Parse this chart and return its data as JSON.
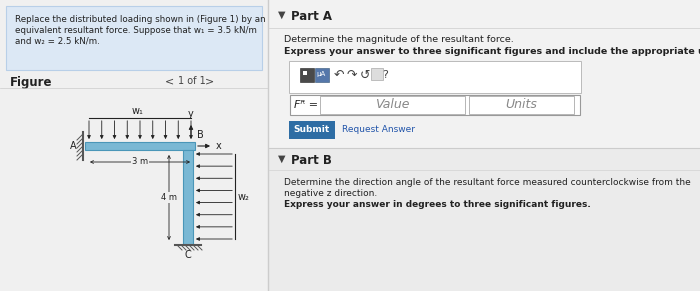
{
  "bg_left": "#f0f0f0",
  "bg_right": "#f2f2f2",
  "problem_box_color": "#dce8f5",
  "problem_box_border": "#b8cfe8",
  "problem_text_line1": "Replace the distributed loading shown in (Figure 1) by an",
  "problem_text_line2": "equivalent resultant force. Suppose that w₁ = 3.5 kN/m",
  "problem_text_line3": "and w₂ = 2.5 kN/m.",
  "figure_label": "Figure",
  "nav_left": "<",
  "nav_text": "1 of 1",
  "nav_right": ">",
  "part_a_label": "Part A",
  "part_a_line1": "Determine the magnitude of the resultant force.",
  "part_a_line2": "Express your answer to three significant figures and include the appropriate units.",
  "fr_label": "Fᴿ =",
  "value_placeholder": "Value",
  "units_placeholder": "Units",
  "submit_text": "Submit",
  "request_text": "Request Answer",
  "part_b_label": "Part B",
  "part_b_line1": "Determine the direction angle of the resultant force measured counterclockwise from the",
  "part_b_line2": "negative z direction.",
  "part_b_line3": "Express your answer in degrees to three significant figures.",
  "collapse_arrow": "▼",
  "dim_3m": "3 m",
  "dim_4m": "4 m",
  "w1_label": "w₁",
  "w2_label": "w₂",
  "beam_color": "#7ab8d4",
  "beam_edge": "#4a96b8",
  "hatch_color": "#555555",
  "arrow_color": "#222222",
  "submit_bg": "#2e6da4",
  "submit_fg": "#ffffff",
  "input_border": "#999999",
  "sep_color": "#cccccc",
  "text_dark": "#222222",
  "text_mid": "#444444",
  "text_light": "#888888",
  "link_color": "#2255aa",
  "toolbar_border": "#bbbbbb",
  "icon1_bg": "#4a4a4a",
  "icon2_bg": "#5577aa"
}
